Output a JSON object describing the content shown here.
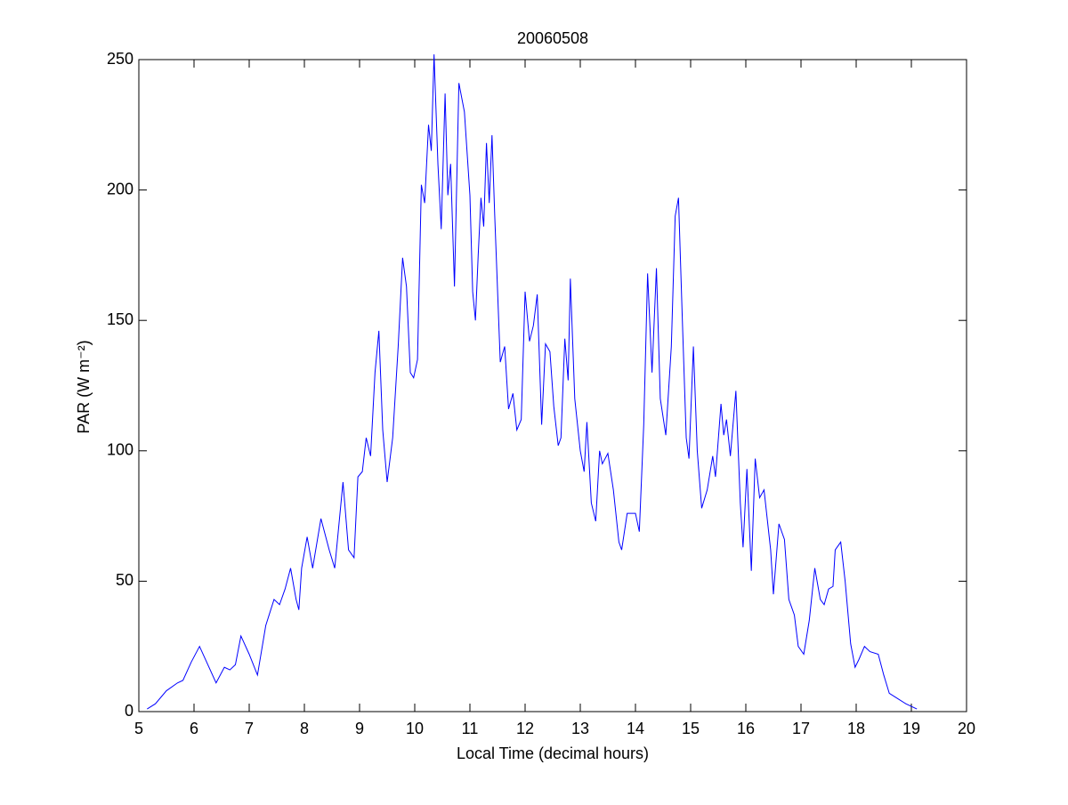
{
  "chart_data": {
    "type": "line",
    "title": "20060508",
    "xlabel": "Local Time (decimal hours)",
    "ylabel": "PAR (W m⁻²)",
    "xlim": [
      5,
      20
    ],
    "ylim": [
      0,
      250
    ],
    "xticks": [
      5,
      6,
      7,
      8,
      9,
      10,
      11,
      12,
      13,
      14,
      15,
      16,
      17,
      18,
      19,
      20
    ],
    "yticks": [
      0,
      50,
      100,
      150,
      200,
      250
    ],
    "grid": false,
    "series": [
      {
        "color": "#0000ff",
        "x": [
          5.15,
          5.3,
          5.5,
          5.7,
          5.8,
          5.95,
          6.1,
          6.25,
          6.4,
          6.55,
          6.65,
          6.75,
          6.85,
          7.0,
          7.15,
          7.3,
          7.45,
          7.55,
          7.65,
          7.75,
          7.85,
          7.9,
          7.95,
          8.05,
          8.15,
          8.3,
          8.45,
          8.55,
          8.7,
          8.8,
          8.9,
          8.97,
          9.05,
          9.12,
          9.2,
          9.28,
          9.35,
          9.42,
          9.5,
          9.6,
          9.7,
          9.78,
          9.85,
          9.92,
          9.98,
          10.05,
          10.12,
          10.18,
          10.25,
          10.3,
          10.35,
          10.42,
          10.48,
          10.55,
          10.6,
          10.65,
          10.72,
          10.8,
          10.9,
          11.0,
          11.05,
          11.1,
          11.15,
          11.2,
          11.25,
          11.3,
          11.35,
          11.4,
          11.45,
          11.55,
          11.63,
          11.7,
          11.78,
          11.85,
          11.93,
          12.0,
          12.08,
          12.15,
          12.22,
          12.3,
          12.37,
          12.45,
          12.52,
          12.6,
          12.65,
          12.72,
          12.78,
          12.82,
          12.9,
          13.0,
          13.07,
          13.12,
          13.2,
          13.28,
          13.35,
          13.4,
          13.5,
          13.6,
          13.7,
          13.75,
          13.85,
          14.0,
          14.07,
          14.15,
          14.22,
          14.3,
          14.38,
          14.45,
          14.55,
          14.65,
          14.72,
          14.78,
          14.85,
          14.92,
          14.97,
          15.05,
          15.12,
          15.2,
          15.3,
          15.4,
          15.45,
          15.55,
          15.6,
          15.65,
          15.72,
          15.82,
          15.9,
          15.95,
          16.02,
          16.1,
          16.17,
          16.25,
          16.33,
          16.45,
          16.5,
          16.6,
          16.7,
          16.78,
          16.88,
          16.95,
          17.05,
          17.15,
          17.25,
          17.35,
          17.42,
          17.5,
          17.58,
          17.62,
          17.72,
          17.8,
          17.9,
          17.98,
          18.05,
          18.15,
          18.25,
          18.4,
          18.5,
          18.6,
          18.75,
          18.9,
          19.1
        ],
        "values": [
          1,
          3,
          8,
          11,
          12,
          19,
          25,
          18,
          11,
          17,
          16,
          18,
          29,
          22,
          14,
          33,
          43,
          41,
          47,
          55,
          43,
          39,
          55,
          67,
          55,
          74,
          62,
          55,
          88,
          62,
          59,
          90,
          92,
          105,
          98,
          130,
          146,
          108,
          88,
          105,
          140,
          174,
          163,
          130,
          128,
          135,
          202,
          195,
          225,
          215,
          252,
          210,
          185,
          237,
          198,
          210,
          163,
          241,
          230,
          198,
          161,
          150,
          175,
          197,
          186,
          218,
          195,
          221,
          190,
          134,
          140,
          116,
          122,
          108,
          112,
          161,
          142,
          148,
          160,
          110,
          141,
          138,
          117,
          102,
          105,
          143,
          127,
          166,
          120,
          100,
          92,
          111,
          80,
          73,
          100,
          95,
          99,
          85,
          65,
          62,
          76,
          76,
          69,
          110,
          168,
          130,
          170,
          120,
          106,
          140,
          190,
          197,
          150,
          105,
          97,
          140,
          100,
          78,
          85,
          98,
          90,
          118,
          106,
          112,
          98,
          123,
          80,
          63,
          93,
          54,
          97,
          82,
          85,
          62,
          45,
          72,
          66,
          43,
          37,
          25,
          22,
          35,
          55,
          43,
          41,
          47,
          48,
          62,
          65,
          50,
          26,
          17,
          20,
          25,
          23,
          22,
          14,
          7,
          5,
          3,
          1
        ]
      }
    ]
  }
}
